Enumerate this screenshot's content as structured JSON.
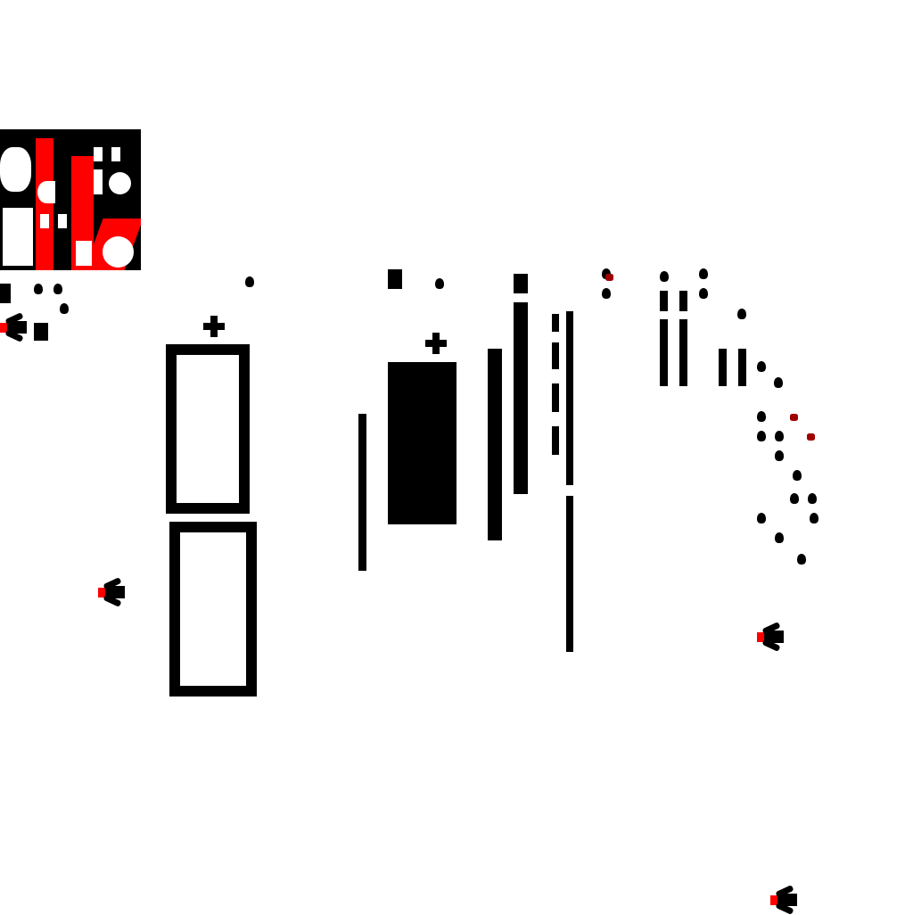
{
  "game": {
    "colors": {
      "background": "#ffffff",
      "walls": "#000000",
      "accent": "#ff0000",
      "enemy": "#a00000"
    },
    "minimap": {
      "icon": "minimap-thumbnail"
    },
    "player_icon": "ship-icon",
    "pickup_icon": "plus-icon"
  }
}
